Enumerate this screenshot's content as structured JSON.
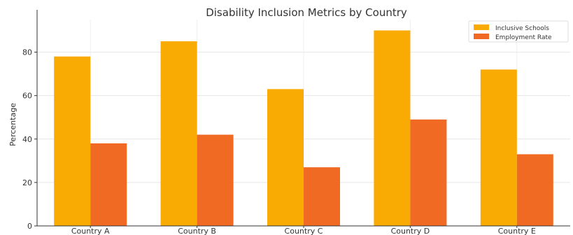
{
  "chart_data": {
    "type": "bar",
    "title": "Disability Inclusion Metrics by Country",
    "xlabel": "",
    "ylabel": "Percentage",
    "categories": [
      "Country A",
      "Country B",
      "Country C",
      "Country D",
      "Country E"
    ],
    "series": [
      {
        "name": "Inclusive Schools",
        "color": "#F9AA03",
        "values": [
          78,
          85,
          63,
          90,
          72
        ]
      },
      {
        "name": "Employment Rate",
        "color": "#F06A23",
        "values": [
          38,
          42,
          27,
          49,
          33
        ]
      }
    ],
    "ylim": [
      0,
      95
    ],
    "yticks": [
      0,
      20,
      40,
      60,
      80
    ],
    "grid": true,
    "legend_position": "top-right"
  }
}
